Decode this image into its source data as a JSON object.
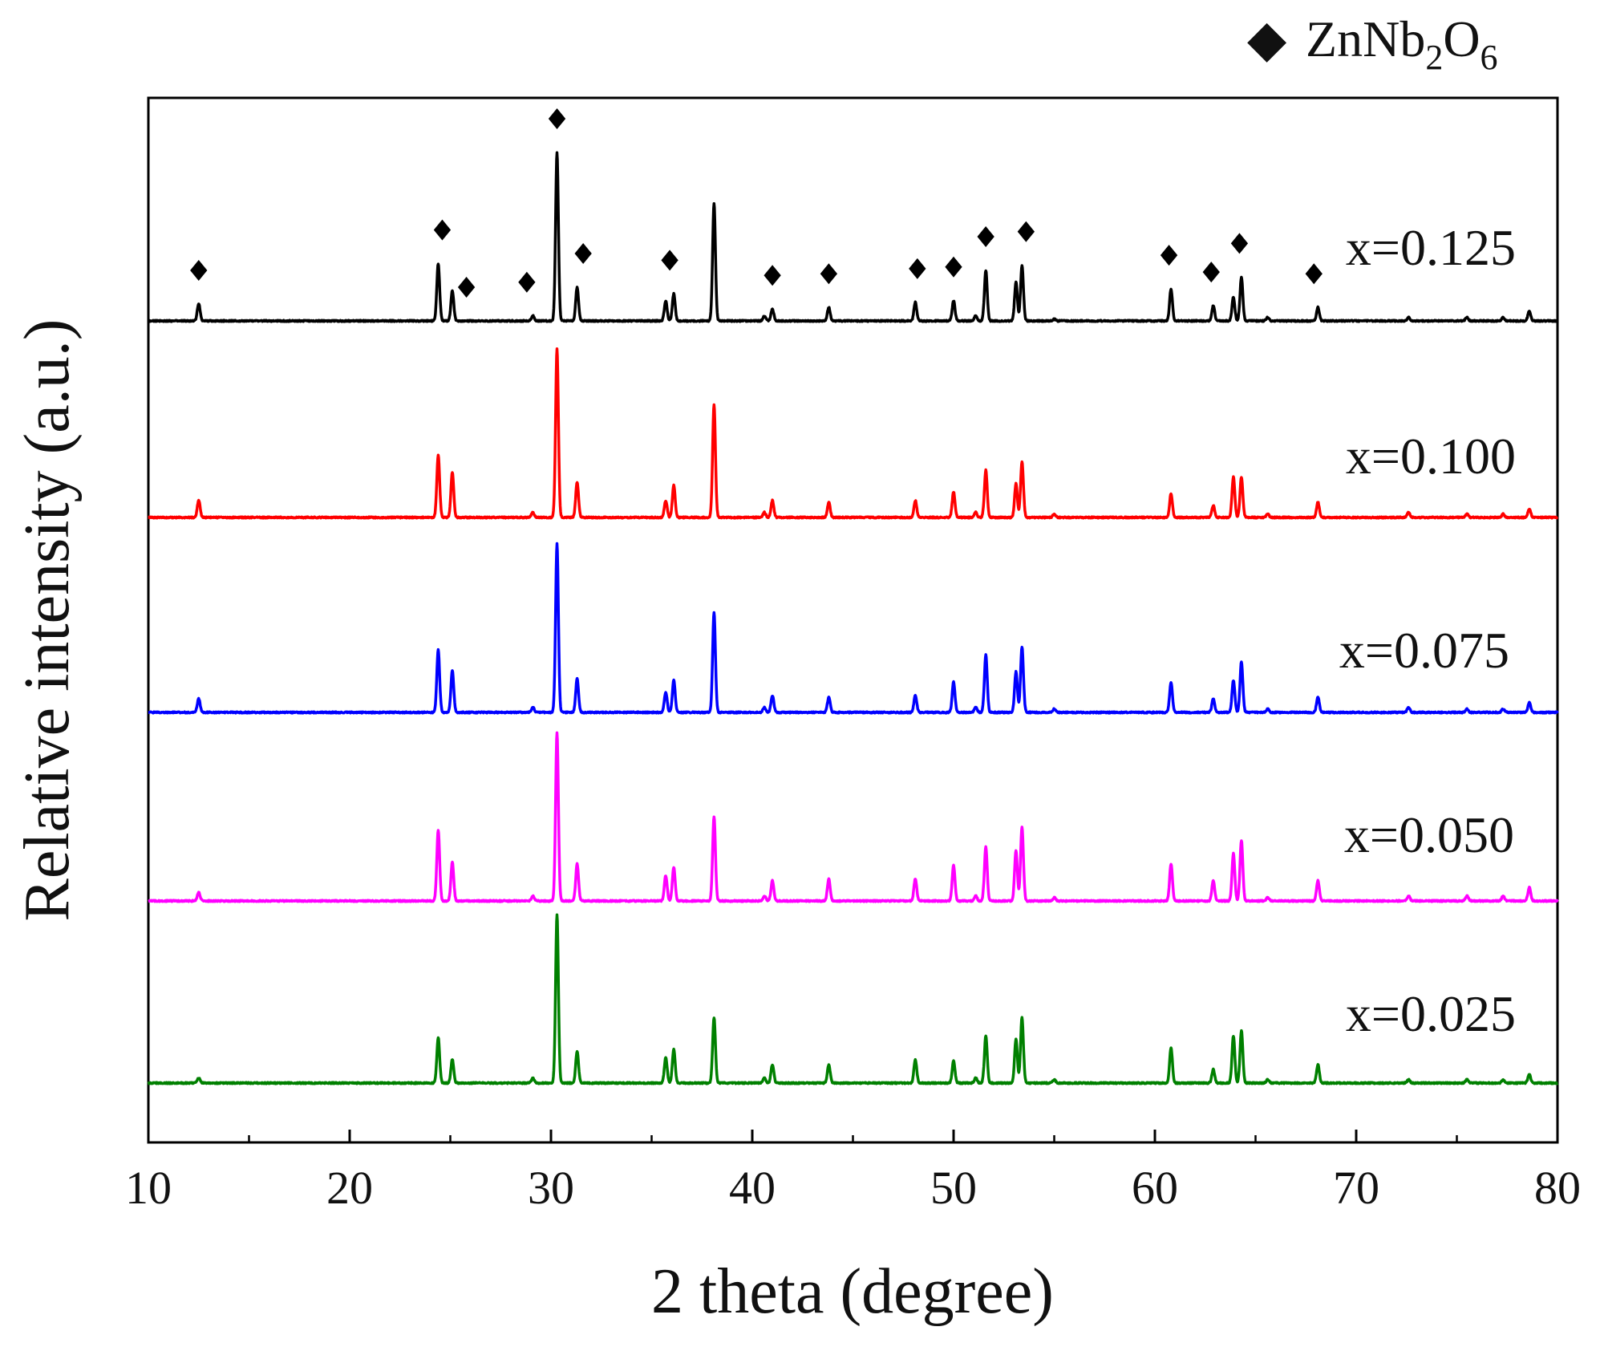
{
  "chart_data": {
    "type": "line",
    "title": "",
    "xlabel": "2 theta (degree)",
    "ylabel": "Relative intensity (a.u.)",
    "xlim": [
      10,
      80
    ],
    "xticks": [
      "10",
      "20",
      "30",
      "40",
      "50",
      "60",
      "70",
      "80"
    ],
    "legend": {
      "marker": "◆",
      "label_parts": [
        "ZnNb",
        "2",
        "O",
        "6"
      ],
      "label": "ZnNb2O6",
      "position": "top-right"
    },
    "peak_positions": [
      12.5,
      24.4,
      25.1,
      29.1,
      30.3,
      31.3,
      35.7,
      36.1,
      38.1,
      40.6,
      41.0,
      43.8,
      48.1,
      50.0,
      51.1,
      51.6,
      53.1,
      53.4,
      55.0,
      60.8,
      62.9,
      63.9,
      64.3,
      65.6,
      68.1,
      72.6,
      75.5,
      77.3,
      78.6
    ],
    "marked_peaks": [
      12.5,
      24.6,
      25.8,
      28.8,
      30.3,
      31.6,
      35.9,
      41.0,
      43.8,
      48.2,
      50.0,
      51.6,
      53.6,
      60.7,
      62.8,
      64.2,
      67.9
    ],
    "series": [
      {
        "name": "x=0.125",
        "color": "#000000",
        "intensities": [
          10,
          34,
          18,
          3,
          100,
          20,
          12,
          16,
          70,
          3,
          7,
          8,
          11,
          12,
          3,
          30,
          23,
          33,
          1,
          19,
          9,
          14,
          26,
          2,
          8,
          2,
          2,
          2,
          6
        ]
      },
      {
        "name": "x=0.100",
        "color": "#ff0000",
        "intensities": [
          10,
          37,
          27,
          3,
          100,
          21,
          10,
          19,
          67,
          3,
          10,
          9,
          10,
          15,
          3,
          28,
          20,
          33,
          2,
          14,
          7,
          24,
          24,
          2,
          9,
          3,
          2,
          2,
          5
        ]
      },
      {
        "name": "x=0.075",
        "color": "#0000ff",
        "intensities": [
          8,
          37,
          25,
          3,
          100,
          20,
          12,
          19,
          59,
          3,
          10,
          9,
          10,
          18,
          3,
          34,
          24,
          39,
          2,
          18,
          8,
          19,
          30,
          2,
          9,
          3,
          2,
          2,
          6
        ]
      },
      {
        "name": "x=0.050",
        "color": "#ff00ff",
        "intensities": [
          5,
          42,
          23,
          3,
          100,
          22,
          15,
          20,
          50,
          3,
          12,
          13,
          13,
          21,
          3,
          32,
          30,
          44,
          2,
          22,
          12,
          28,
          36,
          2,
          12,
          3,
          3,
          3,
          8
        ]
      },
      {
        "name": "x=0.025",
        "color": "#008000",
        "intensities": [
          3,
          27,
          14,
          3,
          100,
          19,
          15,
          20,
          39,
          3,
          11,
          11,
          14,
          13,
          3,
          28,
          26,
          39,
          2,
          21,
          8,
          28,
          31,
          2,
          11,
          2,
          2,
          2,
          5
        ]
      }
    ]
  }
}
